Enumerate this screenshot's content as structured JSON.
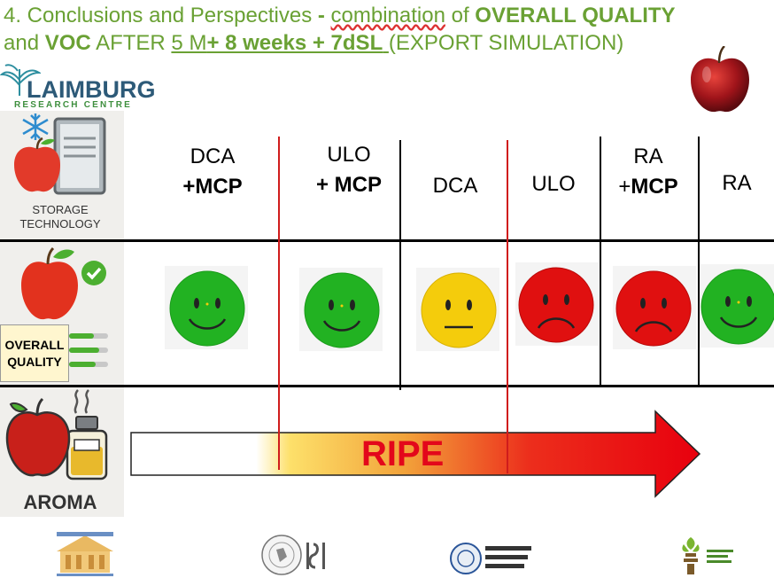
{
  "title": {
    "line1_prefix": "4. Conclusions and Perspectives",
    "line1_dash": " - ",
    "line1_underlined": "combination",
    "line1_of": " of ",
    "line1_bold": "OVERALL QUALITY",
    "line2_and": "and ",
    "line2_bold": "VOC",
    "line2_after": " AFTER ",
    "line2_u1": "5 M",
    "line2_u2": "+ 8 weeks + 7dSL",
    "line2_u3": " ",
    "line2_end": "(EXPORT SIMULATION)"
  },
  "logo": {
    "name": "LAIMBURG",
    "sub": "RESEARCH CENTRE"
  },
  "rows": {
    "storage": "STORAGE TECHNOLOGY",
    "quality_line1": "OVERALL",
    "quality_line2": "QUALITY",
    "aroma": "AROMA"
  },
  "columns": [
    {
      "line1": "DCA",
      "line2": "+MCP",
      "face": "happy"
    },
    {
      "line1": "ULO",
      "line2": "+ MCP",
      "face": "happy"
    },
    {
      "line1": "DCA",
      "line2": "",
      "face": "neutral"
    },
    {
      "line1": "ULO",
      "line2": "",
      "face": "sad"
    },
    {
      "line1": "RA",
      "line2_prefix": "+",
      "line2": "MCP",
      "face": "sad"
    },
    {
      "line1": "RA",
      "line2": "",
      "face": "happy"
    }
  ],
  "arrow_label": "RIPE",
  "colors": {
    "happy": "#22b222",
    "neutral": "#f4cc0c",
    "sad": "#e01010",
    "title": "#6aa134"
  },
  "icons": [
    "snowflake-icon",
    "apple-icon",
    "storage-cabinet-icon",
    "checkmark-icon",
    "quality-bars-icon",
    "perfume-bottle-icon",
    "steam-icon",
    "apple-photo-icon"
  ]
}
